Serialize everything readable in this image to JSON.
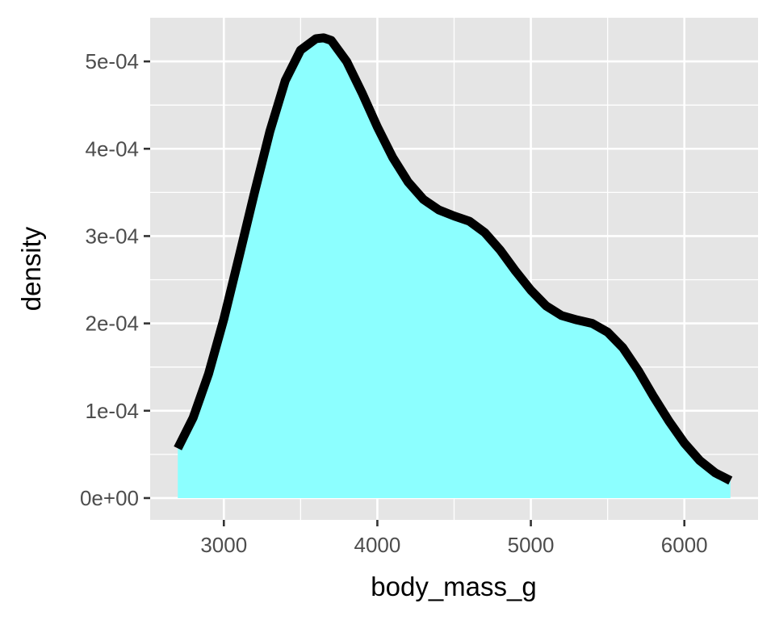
{
  "chart_data": {
    "type": "area",
    "title": "",
    "xlabel": "body_mass_g",
    "ylabel": "density",
    "xlim": [
      2520,
      6480
    ],
    "ylim": [
      -2.5e-05,
      0.00055
    ],
    "x_ticks": [
      3000,
      4000,
      5000,
      6000
    ],
    "x_tick_labels": [
      "3000",
      "4000",
      "5000",
      "6000"
    ],
    "y_ticks": [
      0,
      0.0001,
      0.0002,
      0.0003,
      0.0004,
      0.0005
    ],
    "y_tick_labels": [
      "0e+00",
      "1e-04",
      "2e-04",
      "3e-04",
      "4e-04",
      "5e-04"
    ],
    "grid": true,
    "series": [
      {
        "x": [
          2700,
          2800,
          2900,
          3000,
          3100,
          3200,
          3300,
          3400,
          3500,
          3600,
          3650,
          3700,
          3800,
          3900,
          4000,
          4100,
          4200,
          4300,
          4400,
          4500,
          4600,
          4700,
          4800,
          4900,
          5000,
          5100,
          5200,
          5300,
          5400,
          5500,
          5600,
          5700,
          5800,
          5900,
          6000,
          6100,
          6200,
          6300
        ],
        "y": [
          5.7e-05,
          9.2e-05,
          0.000142,
          0.000205,
          0.000277,
          0.00035,
          0.00042,
          0.000478,
          0.000513,
          0.000526,
          0.000527,
          0.000524,
          0.0005,
          0.000464,
          0.000425,
          0.00039,
          0.000362,
          0.000342,
          0.00033,
          0.000323,
          0.000317,
          0.000304,
          0.000284,
          0.00026,
          0.000238,
          0.00022,
          0.000209,
          0.000204,
          0.0002,
          0.00019,
          0.000172,
          0.000146,
          0.000116,
          8.8e-05,
          6.3e-05,
          4.3e-05,
          2.9e-05,
          2e-05
        ]
      }
    ],
    "colors": {
      "fill": "#8cffff",
      "line": "#000000",
      "panel": "#e5e5e5",
      "grid": "#ffffff",
      "tick_mark": "#333333"
    }
  }
}
